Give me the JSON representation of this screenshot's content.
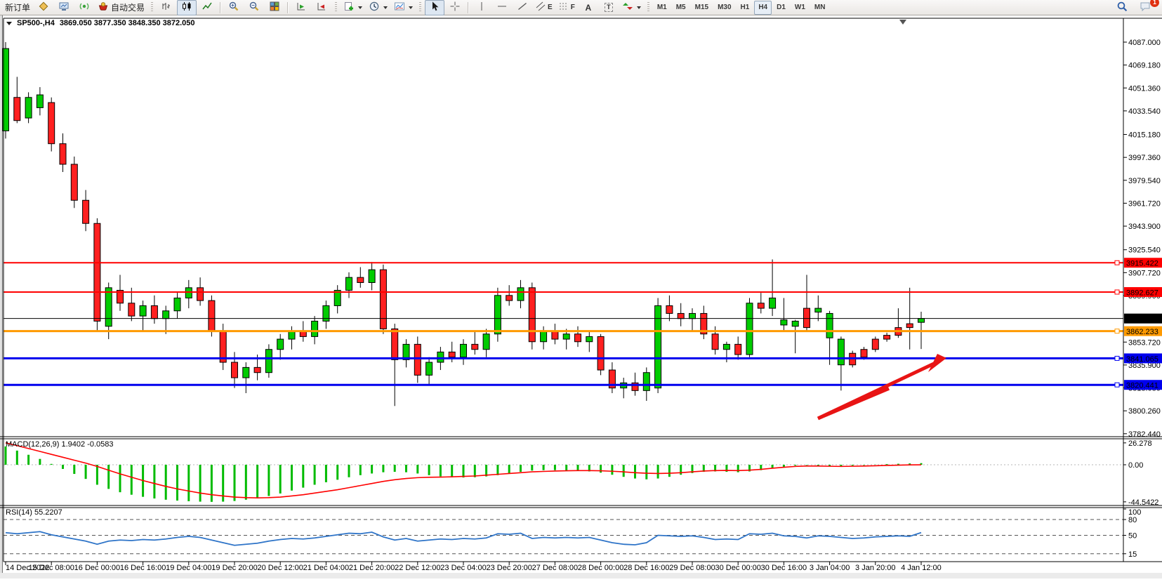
{
  "toolbar": {
    "new_order_label": "新订单",
    "autotrade_label": "自动交易",
    "timeframes": [
      "M1",
      "M5",
      "M15",
      "M30",
      "H1",
      "H4",
      "D1",
      "W1",
      "MN"
    ],
    "active_timeframe": "H4",
    "notification_badge": "1",
    "glyphs": {
      "channel": "E",
      "fibonacci": "F",
      "text": "A",
      "label": "T"
    }
  },
  "chart": {
    "title": {
      "symbol_period": "SP500-,H4",
      "ohlc": "3869.050 3877.350 3848.350 3872.050"
    },
    "price_axis": {
      "ticks": [
        "4087.000",
        "4069.180",
        "4051.360",
        "4033.540",
        "4015.180",
        "3997.360",
        "3979.540",
        "3961.720",
        "3943.900",
        "3925.540",
        "3907.720",
        "3889.900",
        "3853.720",
        "3835.900",
        "3818.080",
        "3800.260",
        "3782.440"
      ]
    },
    "hlines": [
      {
        "price": 3915.422,
        "label": "3915.422",
        "color": "#ff0000",
        "width": 2,
        "handle": true
      },
      {
        "price": 3892.627,
        "label": "3892.627",
        "color": "#ff0000",
        "width": 2,
        "handle": true
      },
      {
        "price": 3872.05,
        "label": "3872.050",
        "color": "#000000",
        "width": 1,
        "handle": false
      },
      {
        "price": 3862.233,
        "label": "3862.233",
        "color": "#ff9a00",
        "width": 3,
        "handle": true
      },
      {
        "price": 3841.065,
        "label": "3841.065",
        "color": "#0000ee",
        "width": 3,
        "handle": true
      },
      {
        "price": 3820.441,
        "label": "3820.441",
        "color": "#0000ee",
        "width": 3,
        "handle": true
      }
    ],
    "time_axis": {
      "labels": [
        "14 Dec 2022",
        "15 Dec 08:00",
        "16 Dec 00:00",
        "16 Dec 16:00",
        "19 Dec 04:00",
        "19 Dec 20:00",
        "20 Dec 12:00",
        "21 Dec 04:00",
        "21 Dec 20:00",
        "22 Dec 12:00",
        "23 Dec 04:00",
        "23 Dec 20:00",
        "27 Dec 08:00",
        "28 Dec 00:00",
        "28 Dec 16:00",
        "29 Dec 08:00",
        "30 Dec 00:00",
        "30 Dec 16:00",
        "3 Jan 04:00",
        "3 Jan 20:00",
        "4 Jan 12:00"
      ]
    },
    "macd": {
      "label": "MACD(12,26,9) 1.9402 -0.0583",
      "axis": [
        "26.278",
        "0.00",
        "-44.5422"
      ]
    },
    "rsi": {
      "label": "RSI(14) 55.2207",
      "axis": [
        "100",
        "80",
        "50",
        "15"
      ],
      "levels": [
        80,
        50,
        15
      ]
    }
  },
  "chart_data": {
    "type": "candlestick",
    "symbol": "SP500-",
    "period": "H4",
    "price_range": [
      3782.44,
      4087.0
    ],
    "candles": [
      [
        4018,
        4087,
        4012,
        4082
      ],
      [
        4044,
        4060,
        4024,
        4026
      ],
      [
        4028,
        4048,
        4024,
        4044
      ],
      [
        4036,
        4052,
        4030,
        4046
      ],
      [
        4040,
        4044,
        4002,
        4008
      ],
      [
        4008,
        4016,
        3986,
        3992
      ],
      [
        3992,
        3998,
        3958,
        3964
      ],
      [
        3964,
        3972,
        3940,
        3946
      ],
      [
        3946,
        3950,
        3862,
        3870
      ],
      [
        3866,
        3900,
        3856,
        3896
      ],
      [
        3894,
        3906,
        3878,
        3884
      ],
      [
        3884,
        3896,
        3870,
        3874
      ],
      [
        3874,
        3886,
        3862,
        3882
      ],
      [
        3882,
        3890,
        3868,
        3872
      ],
      [
        3872,
        3882,
        3860,
        3878
      ],
      [
        3878,
        3892,
        3872,
        3888
      ],
      [
        3888,
        3902,
        3880,
        3896
      ],
      [
        3896,
        3904,
        3882,
        3886
      ],
      [
        3886,
        3890,
        3858,
        3862
      ],
      [
        3862,
        3868,
        3832,
        3838
      ],
      [
        3838,
        3846,
        3818,
        3826
      ],
      [
        3826,
        3838,
        3814,
        3834
      ],
      [
        3834,
        3844,
        3824,
        3830
      ],
      [
        3830,
        3852,
        3826,
        3848
      ],
      [
        3848,
        3860,
        3840,
        3856
      ],
      [
        3856,
        3866,
        3848,
        3862
      ],
      [
        3862,
        3870,
        3854,
        3858
      ],
      [
        3858,
        3874,
        3852,
        3870
      ],
      [
        3870,
        3886,
        3864,
        3882
      ],
      [
        3882,
        3898,
        3876,
        3894
      ],
      [
        3894,
        3908,
        3888,
        3904
      ],
      [
        3904,
        3912,
        3896,
        3900
      ],
      [
        3900,
        3916,
        3894,
        3910
      ],
      [
        3910,
        3914,
        3860,
        3864
      ],
      [
        3864,
        3868,
        3804,
        3840
      ],
      [
        3840,
        3856,
        3834,
        3852
      ],
      [
        3852,
        3858,
        3822,
        3828
      ],
      [
        3828,
        3842,
        3820,
        3838
      ],
      [
        3838,
        3850,
        3832,
        3846
      ],
      [
        3846,
        3854,
        3838,
        3842
      ],
      [
        3842,
        3856,
        3836,
        3852
      ],
      [
        3852,
        3862,
        3844,
        3848
      ],
      [
        3848,
        3864,
        3842,
        3860
      ],
      [
        3860,
        3896,
        3854,
        3890
      ],
      [
        3890,
        3898,
        3882,
        3886
      ],
      [
        3886,
        3902,
        3880,
        3896
      ],
      [
        3896,
        3900,
        3848,
        3854
      ],
      [
        3854,
        3866,
        3848,
        3862
      ],
      [
        3862,
        3868,
        3852,
        3856
      ],
      [
        3856,
        3864,
        3848,
        3860
      ],
      [
        3860,
        3866,
        3850,
        3854
      ],
      [
        3854,
        3862,
        3846,
        3858
      ],
      [
        3858,
        3860,
        3828,
        3832
      ],
      [
        3832,
        3838,
        3814,
        3818
      ],
      [
        3818,
        3826,
        3810,
        3822
      ],
      [
        3822,
        3830,
        3812,
        3816
      ],
      [
        3816,
        3834,
        3808,
        3830
      ],
      [
        3818,
        3888,
        3814,
        3882
      ],
      [
        3882,
        3890,
        3870,
        3876
      ],
      [
        3876,
        3884,
        3866,
        3872
      ],
      [
        3872,
        3880,
        3862,
        3876
      ],
      [
        3876,
        3882,
        3856,
        3860
      ],
      [
        3860,
        3866,
        3844,
        3848
      ],
      [
        3848,
        3854,
        3838,
        3852
      ],
      [
        3852,
        3858,
        3840,
        3844
      ],
      [
        3844,
        3888,
        3842,
        3884
      ],
      [
        3884,
        3892,
        3876,
        3880
      ],
      [
        3880,
        3918,
        3874,
        3888
      ],
      [
        3867,
        3888,
        3863,
        3871
      ],
      [
        3866,
        3871,
        3845,
        3870
      ],
      [
        3880,
        3906,
        3862,
        3865
      ],
      [
        3877,
        3890,
        3870,
        3880
      ],
      [
        3857,
        3878,
        3836,
        3876
      ],
      [
        3836,
        3858,
        3816,
        3856
      ],
      [
        3845,
        3847,
        3834,
        3836
      ],
      [
        3848,
        3850,
        3840,
        3842
      ],
      [
        3856,
        3858,
        3846,
        3848
      ],
      [
        3859,
        3861,
        3854,
        3856
      ],
      [
        3865,
        3880,
        3857,
        3859
      ],
      [
        3868,
        3896,
        3848,
        3865
      ],
      [
        3869.05,
        3877.35,
        3848.35,
        3872.05
      ]
    ],
    "macd_histogram": [
      22,
      17,
      12,
      7,
      1,
      -5,
      -11,
      -17,
      -24,
      -29,
      -33,
      -36,
      -38.5,
      -40.5,
      -42,
      -43,
      -43.8,
      -44.3,
      -44.5422,
      -44.3,
      -43.5,
      -42,
      -40,
      -37.5,
      -34.5,
      -31,
      -27.5,
      -24,
      -21,
      -18,
      -15,
      -12.5,
      -10.5,
      -9,
      -8.5,
      -9,
      -10.5,
      -12.5,
      -14,
      -15,
      -15.3,
      -15,
      -14,
      -12.5,
      -10.5,
      -8.5,
      -7,
      -6.5,
      -6.5,
      -7,
      -7.5,
      -8,
      -9.5,
      -12,
      -14.5,
      -16.5,
      -17.5,
      -16.5,
      -14.5,
      -12,
      -10,
      -8.5,
      -8,
      -8.5,
      -9,
      -8,
      -6.5,
      -4.5,
      -2.5,
      -1,
      -0.5,
      -1,
      -1.5,
      -1.5,
      -1,
      -0.5,
      0.2,
      0.8,
      1.2,
      1.6,
      1.9402
    ],
    "macd_signal": [
      26.278,
      23,
      19.5,
      16,
      12.5,
      9,
      5.5,
      2,
      -2,
      -6.5,
      -11,
      -15,
      -19,
      -22.5,
      -26,
      -29,
      -31.5,
      -34,
      -36,
      -37.5,
      -38.8,
      -39.5,
      -39.8,
      -39.5,
      -38.8,
      -37.5,
      -36,
      -34,
      -32,
      -30,
      -27.5,
      -25,
      -22.5,
      -20,
      -18,
      -16.5,
      -15.5,
      -15,
      -14.8,
      -14.5,
      -14,
      -13.5,
      -12.5,
      -11.5,
      -10.5,
      -9.5,
      -8.5,
      -8,
      -7.5,
      -7.2,
      -7,
      -7,
      -7.2,
      -7.8,
      -8.5,
      -9.5,
      -10.2,
      -10.5,
      -10.2,
      -9.5,
      -8.5,
      -7.5,
      -7,
      -6.8,
      -7,
      -6.5,
      -5.5,
      -4.2,
      -3,
      -2,
      -1.5,
      -1.5,
      -1.8,
      -2,
      -1.8,
      -1.5,
      -1.2,
      -0.8,
      -0.5,
      -0.2,
      -0.0583
    ],
    "rsi_values": [
      55,
      53,
      55,
      57,
      51,
      47,
      43,
      39,
      33,
      39,
      41,
      40,
      42,
      41,
      43,
      46,
      48,
      46,
      41,
      36,
      31,
      33,
      35,
      39,
      42,
      44,
      43,
      45,
      48,
      51,
      54,
      53,
      56,
      47,
      41,
      44,
      39,
      41,
      43,
      42,
      44,
      43,
      45,
      53,
      52,
      54,
      44,
      46,
      45,
      46,
      45,
      46,
      41,
      36,
      33,
      32,
      36,
      50,
      49,
      48,
      49,
      46,
      42,
      43,
      42,
      53,
      52,
      54,
      49,
      48,
      45,
      49,
      48,
      46,
      44,
      45,
      47,
      48,
      49,
      48,
      55.2207
    ]
  },
  "annotations": {
    "arrow": {
      "color": "#e81414",
      "tail": [
        1165,
        574
      ],
      "tip": [
        1348,
        488
      ]
    }
  },
  "colors": {
    "bull": "#00cc00",
    "bear": "#ff2020",
    "wick": "#000000",
    "macd_hist": "#00bb00",
    "macd_signal": "#ff0000",
    "rsi_line": "#2e74c8",
    "background": "#ffffff"
  }
}
